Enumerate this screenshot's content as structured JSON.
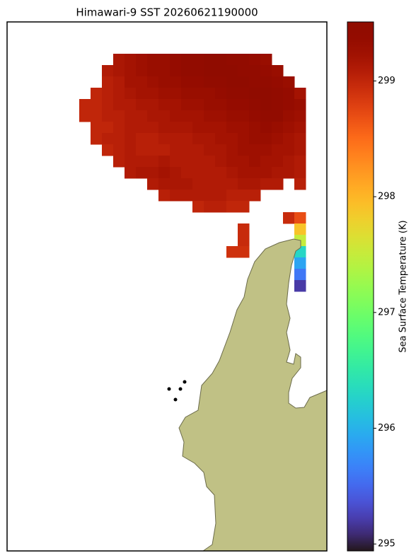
{
  "chart_data": {
    "type": "heatmap",
    "title": "Himawari-9 SST 20260621190000",
    "colorbar_label": "Sea Surface Temperature (K)",
    "colormap": "turbo",
    "clim": [
      294.94,
      299.51
    ],
    "colorbar_ticks": [
      295,
      296,
      297,
      298,
      299
    ],
    "values": [
      [
        null,
        null,
        null,
        299.15,
        299.2,
        299.25,
        299.3,
        299.3,
        299.35,
        299.4,
        299.4,
        299.45,
        299.45,
        299.4,
        299.4,
        299.35,
        299.3,
        null,
        null,
        null
      ],
      [
        null,
        null,
        299.1,
        299.15,
        299.2,
        299.25,
        299.3,
        299.3,
        299.35,
        299.4,
        299.4,
        299.45,
        299.45,
        299.45,
        299.4,
        299.4,
        299.35,
        299.3,
        null,
        null
      ],
      [
        null,
        null,
        299.05,
        299.1,
        299.2,
        299.2,
        299.25,
        299.3,
        299.3,
        299.35,
        299.35,
        299.4,
        299.4,
        299.45,
        299.45,
        299.4,
        299.4,
        299.35,
        299.3,
        null
      ],
      [
        null,
        299.0,
        299.05,
        299.1,
        299.15,
        299.2,
        299.2,
        299.25,
        299.25,
        299.3,
        299.3,
        299.3,
        299.35,
        299.4,
        299.4,
        299.45,
        299.45,
        299.4,
        299.35,
        299.2
      ],
      [
        299.0,
        299.0,
        299.05,
        299.1,
        299.1,
        299.15,
        299.15,
        299.2,
        299.2,
        299.25,
        299.25,
        299.3,
        299.3,
        299.35,
        299.35,
        299.4,
        299.45,
        299.4,
        299.35,
        299.3
      ],
      [
        299.0,
        299.0,
        299.05,
        299.05,
        299.1,
        299.1,
        299.15,
        299.15,
        299.2,
        299.2,
        299.2,
        299.25,
        299.25,
        299.3,
        299.3,
        299.35,
        299.4,
        299.4,
        299.3,
        299.25
      ],
      [
        null,
        299.0,
        299.0,
        299.05,
        299.1,
        299.1,
        299.1,
        299.15,
        299.15,
        299.15,
        299.2,
        299.2,
        299.2,
        299.25,
        299.25,
        299.3,
        299.35,
        299.3,
        299.25,
        299.2
      ],
      [
        null,
        299.0,
        299.05,
        299.05,
        299.1,
        299.05,
        299.05,
        299.1,
        299.1,
        299.1,
        299.15,
        299.15,
        299.2,
        299.2,
        299.25,
        299.3,
        299.3,
        299.25,
        299.2,
        299.15
      ],
      [
        null,
        null,
        299.0,
        299.05,
        299.1,
        299.05,
        299.05,
        299.05,
        299.1,
        299.1,
        299.1,
        299.15,
        299.15,
        299.2,
        299.25,
        299.25,
        299.25,
        299.2,
        299.2,
        299.15
      ],
      [
        null,
        null,
        null,
        299.05,
        299.1,
        299.1,
        299.1,
        299.15,
        299.1,
        299.1,
        299.1,
        299.1,
        299.15,
        299.2,
        299.2,
        299.25,
        299.2,
        299.2,
        299.15,
        299.1
      ],
      [
        null,
        null,
        null,
        null,
        299.1,
        299.15,
        299.15,
        299.2,
        299.15,
        299.1,
        299.1,
        299.1,
        299.1,
        299.15,
        299.2,
        299.2,
        299.2,
        299.15,
        299.15,
        299.1
      ],
      [
        null,
        null,
        null,
        null,
        null,
        null,
        299.1,
        299.15,
        299.15,
        299.15,
        299.1,
        299.1,
        299.1,
        299.1,
        299.15,
        299.15,
        299.1,
        299.1,
        null,
        299.05
      ],
      [
        null,
        null,
        null,
        null,
        null,
        null,
        null,
        299.05,
        299.1,
        299.1,
        299.1,
        299.1,
        299.1,
        299.05,
        299.05,
        299.05,
        null,
        null,
        null,
        null
      ],
      [
        null,
        null,
        null,
        null,
        null,
        null,
        null,
        null,
        null,
        null,
        299.0,
        299.05,
        299.05,
        299.0,
        299.0,
        null,
        null,
        null,
        null,
        null
      ],
      [
        null,
        null,
        null,
        null,
        null,
        null,
        null,
        null,
        null,
        null,
        null,
        null,
        null,
        null,
        null,
        null,
        null,
        null,
        298.95,
        298.7
      ],
      [
        null,
        null,
        null,
        null,
        null,
        null,
        null,
        null,
        null,
        null,
        null,
        null,
        null,
        null,
        298.95,
        null,
        null,
        null,
        null,
        297.9
      ],
      [
        null,
        null,
        null,
        null,
        null,
        null,
        null,
        null,
        null,
        null,
        null,
        null,
        null,
        null,
        298.95,
        null,
        null,
        null,
        null,
        297.5
      ],
      [
        null,
        null,
        null,
        null,
        null,
        null,
        null,
        null,
        null,
        null,
        null,
        null,
        null,
        298.9,
        298.9,
        null,
        null,
        null,
        null,
        296.3
      ],
      [
        null,
        null,
        null,
        null,
        null,
        null,
        null,
        null,
        null,
        null,
        null,
        null,
        null,
        null,
        null,
        null,
        null,
        null,
        null,
        295.9
      ],
      [
        null,
        null,
        null,
        null,
        null,
        null,
        null,
        null,
        null,
        null,
        null,
        null,
        null,
        null,
        null,
        null,
        null,
        null,
        null,
        295.6
      ],
      [
        null,
        null,
        null,
        null,
        null,
        null,
        null,
        null,
        null,
        null,
        null,
        null,
        null,
        null,
        null,
        null,
        null,
        null,
        null,
        295.2
      ]
    ]
  }
}
